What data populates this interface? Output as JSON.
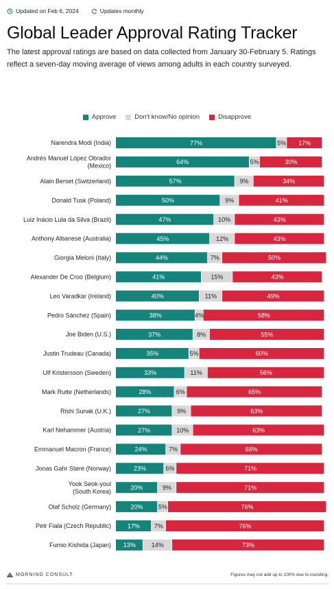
{
  "header": {
    "updated": "Updated on Feb 6, 2024",
    "frequency": "Updates monthly",
    "title": "Global Leader Approval Rating Tracker",
    "subtitle": "The latest approval ratings are based on data collected from January 30-February 5. Ratings reflect a seven-day moving average of views among adults in each country surveyed."
  },
  "legend": {
    "approve": "Approve",
    "unsure": "Don't know/No opinion",
    "disapprove": "Disapprove"
  },
  "colors": {
    "approve": "#15847b",
    "unsure": "#d9d9d9",
    "disapprove": "#d7263d"
  },
  "chart_data": {
    "type": "bar",
    "stacked": true,
    "orientation": "horizontal",
    "categories": [
      "Narendra Modi (India)",
      "Andrés Manuel López Obrador (Mexico)",
      "Alain Berset (Switzerland)",
      "Donald Tusk (Poland)",
      "Luiz Inácio Lula da Silva (Brazil)",
      "Anthony Albanese (Australia)",
      "Giorgia Meloni (Italy)",
      "Alexander De Croo (Belgium)",
      "Leo Varadkar (Ireland)",
      "Pedro Sánchez (Spain)",
      "Joe Biden (U.S.)",
      "Justin Trudeau (Canada)",
      "Ulf Kristersson (Sweden)",
      "Mark Rutte (Netherlands)",
      "Rishi Sunak (U.K.)",
      "Karl Nehammer (Austria)",
      "Emmanuel Macron (France)",
      "Jonas Gahr Støre (Norway)",
      "Yook Seok-youl (South Korea)",
      "Olaf Scholz (Germany)",
      "Petr Fiala (Czech Republic)",
      "Fumio Kishida (Japan)"
    ],
    "category_lines": [
      [
        "Narendra Modi (India)"
      ],
      [
        "Andrés Manuel López Obrador",
        "(Mexico)"
      ],
      [
        "Alain Berset (Switzerland)"
      ],
      [
        "Donald Tusk (Poland)"
      ],
      [
        "Luiz Inácio Lula da Silva (Brazil)"
      ],
      [
        "Anthony Albanese (Australia)"
      ],
      [
        "Giorgia Meloni (Italy)"
      ],
      [
        "Alexander De Croo (Belgium)"
      ],
      [
        "Leo Varadkar (Ireland)"
      ],
      [
        "Pedro Sánchez (Spain)"
      ],
      [
        "Joe Biden (U.S.)"
      ],
      [
        "Justin Trudeau (Canada)"
      ],
      [
        "Ulf Kristersson (Sweden)"
      ],
      [
        "Mark Rutte (Netherlands)"
      ],
      [
        "Rishi Sunak (U.K.)"
      ],
      [
        "Karl Nehammer (Austria)"
      ],
      [
        "Emmanuel Macron (France)"
      ],
      [
        "Jonas Gahr Støre (Norway)"
      ],
      [
        "Yook Seok-youl",
        "(South Korea)"
      ],
      [
        "Olaf Scholz (Germany)"
      ],
      [
        "Petr Fiala (Czech Republic)"
      ],
      [
        "Fumio Kishida (Japan)"
      ]
    ],
    "series": [
      {
        "name": "Approve",
        "values": [
          77,
          64,
          57,
          50,
          47,
          45,
          44,
          41,
          40,
          38,
          37,
          35,
          33,
          28,
          27,
          27,
          24,
          23,
          20,
          20,
          17,
          13
        ]
      },
      {
        "name": "Don't know/No opinion",
        "values": [
          5,
          5,
          9,
          9,
          10,
          12,
          7,
          15,
          11,
          4,
          8,
          5,
          11,
          6,
          9,
          10,
          7,
          6,
          9,
          5,
          7,
          14
        ]
      },
      {
        "name": "Disapprove",
        "values": [
          17,
          30,
          34,
          41,
          43,
          43,
          50,
          43,
          49,
          58,
          55,
          60,
          56,
          65,
          63,
          63,
          68,
          71,
          71,
          76,
          76,
          73
        ]
      }
    ],
    "value_suffix": "%",
    "xlim": [
      0,
      100
    ],
    "legend_position": "top-center"
  },
  "footer": {
    "brand": "MORNING CONSULT",
    "note": "Figures may not add up to 100% due to rounding."
  }
}
